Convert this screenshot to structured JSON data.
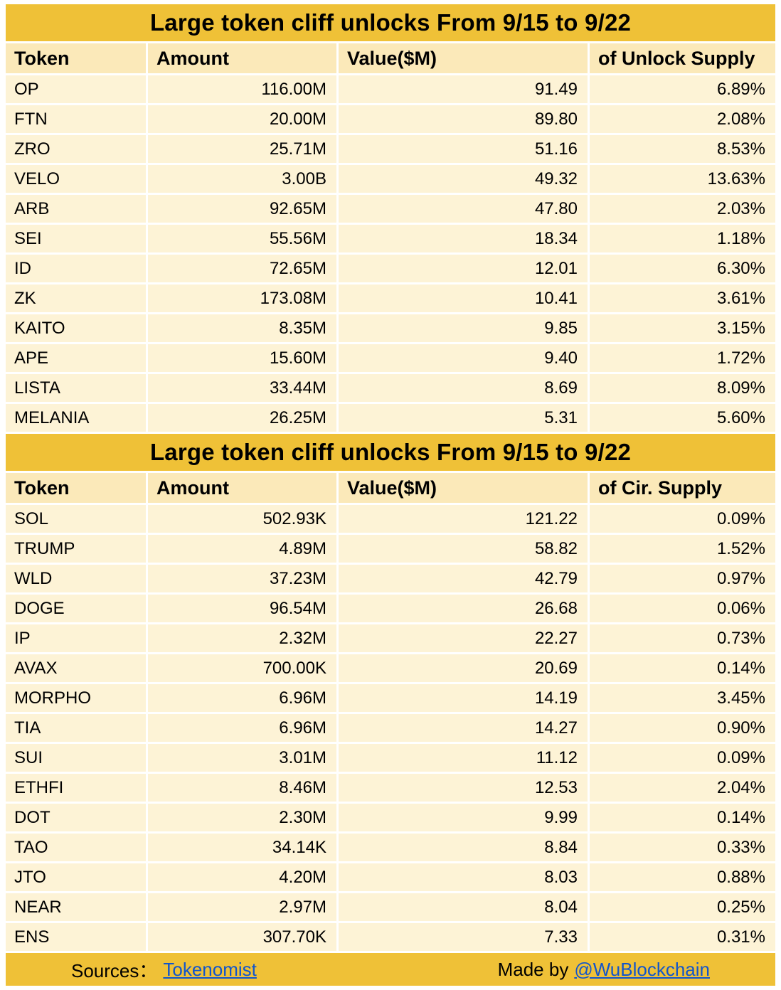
{
  "chart_data": [
    {
      "type": "table",
      "title": "Large token cliff unlocks From  9/15 to 9/22",
      "columns": [
        "Token",
        "Amount",
        "Value($M)",
        "of Unlock Supply"
      ],
      "rows": [
        [
          "OP",
          "116.00M",
          "91.49",
          "6.89%"
        ],
        [
          "FTN",
          "20.00M",
          "89.80",
          "2.08%"
        ],
        [
          "ZRO",
          "25.71M",
          "51.16",
          "8.53%"
        ],
        [
          "VELO",
          "3.00B",
          "49.32",
          "13.63%"
        ],
        [
          "ARB",
          "92.65M",
          "47.80",
          "2.03%"
        ],
        [
          "SEI",
          "55.56M",
          "18.34",
          "1.18%"
        ],
        [
          "ID",
          "72.65M",
          "12.01",
          "6.30%"
        ],
        [
          "ZK",
          "173.08M",
          "10.41",
          "3.61%"
        ],
        [
          "KAITO",
          "8.35M",
          "9.85",
          "3.15%"
        ],
        [
          "APE",
          "15.60M",
          "9.40",
          "1.72%"
        ],
        [
          "LISTA",
          "33.44M",
          "8.69",
          "8.09%"
        ],
        [
          "MELANIA",
          "26.25M",
          "5.31",
          "5.60%"
        ]
      ]
    },
    {
      "type": "table",
      "title": "Large token cliff unlocks From  9/15 to 9/22",
      "columns": [
        "Token",
        "Amount",
        "Value($M)",
        "of Cir. Supply"
      ],
      "rows": [
        [
          "SOL",
          "502.93K",
          "121.22",
          "0.09%"
        ],
        [
          "TRUMP",
          "4.89M",
          "58.82",
          "1.52%"
        ],
        [
          "WLD",
          "37.23M",
          "42.79",
          "0.97%"
        ],
        [
          "DOGE",
          "96.54M",
          "26.68",
          "0.06%"
        ],
        [
          "IP",
          "2.32M",
          "22.27",
          "0.73%"
        ],
        [
          "AVAX",
          "700.00K",
          "20.69",
          "0.14%"
        ],
        [
          "MORPHO",
          "6.96M",
          "14.19",
          "3.45%"
        ],
        [
          "TIA",
          "6.96M",
          "14.27",
          "0.90%"
        ],
        [
          "SUI",
          "3.01M",
          "11.12",
          "0.09%"
        ],
        [
          "ETHFI",
          "8.46M",
          "12.53",
          "2.04%"
        ],
        [
          "DOT",
          "2.30M",
          "9.99",
          "0.14%"
        ],
        [
          "TAO",
          "34.14K",
          "8.84",
          "0.33%"
        ],
        [
          "JTO",
          "4.20M",
          "8.03",
          "0.88%"
        ],
        [
          "NEAR",
          "2.97M",
          "8.04",
          "0.25%"
        ],
        [
          "ENS",
          "307.70K",
          "7.33",
          "0.31%"
        ]
      ]
    }
  ],
  "footer": {
    "sources_label": "Sources：",
    "sources_link": "Tokenomist",
    "made_by_label": "Made by",
    "made_by_link": "@WuBlockchain"
  },
  "colors": {
    "accent_gold": "#EFC137",
    "header_bg": "#FBE9B9",
    "row_bg": "#FDF3D6",
    "link_blue": "#1155CC",
    "text": "#000000"
  }
}
